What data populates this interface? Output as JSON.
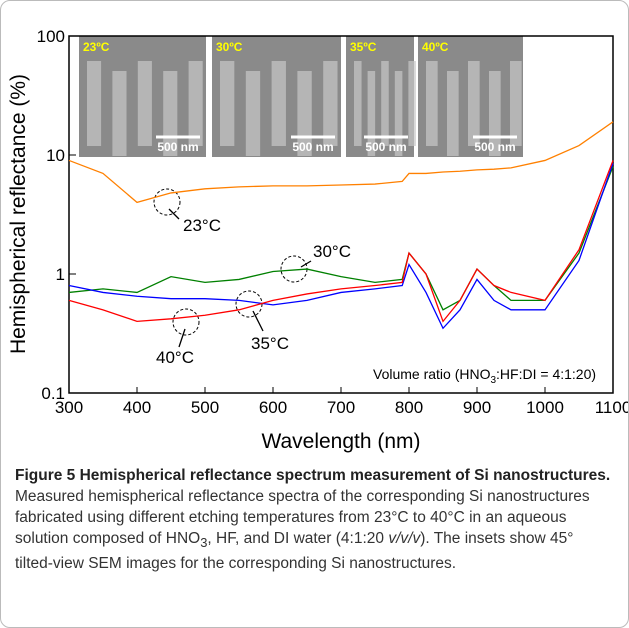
{
  "chart_data": {
    "type": "line",
    "y_label": "Hemispherical reflectance (%)",
    "x_label": "Wavelength (nm)",
    "y_scale": "log",
    "x": [
      300,
      350,
      400,
      450,
      500,
      550,
      600,
      650,
      700,
      750,
      790,
      800,
      825,
      850,
      875,
      900,
      925,
      950,
      1000,
      1050,
      1100
    ],
    "series": [
      {
        "name": "23°C",
        "color": "#ff8000",
        "values": [
          9,
          7,
          4,
          4.8,
          5.2,
          5.4,
          5.5,
          5.5,
          5.6,
          5.7,
          6,
          7,
          7,
          7.2,
          7.3,
          7.5,
          7.6,
          7.8,
          9,
          12,
          19
        ]
      },
      {
        "name": "30°C",
        "color": "#008000",
        "values": [
          0.7,
          0.75,
          0.7,
          0.95,
          0.85,
          0.9,
          1.05,
          1.1,
          0.95,
          0.85,
          0.9,
          1.5,
          1,
          0.5,
          0.6,
          1.1,
          0.8,
          0.6,
          0.6,
          1.5,
          8
        ]
      },
      {
        "name": "35°C",
        "color": "#0000ff",
        "values": [
          0.8,
          0.7,
          0.65,
          0.62,
          0.62,
          0.6,
          0.55,
          0.6,
          0.7,
          0.75,
          0.8,
          1.2,
          0.7,
          0.35,
          0.5,
          0.9,
          0.6,
          0.5,
          0.5,
          1.3,
          8.5
        ]
      },
      {
        "name": "40°C",
        "color": "#ff0000",
        "values": [
          0.6,
          0.5,
          0.4,
          0.42,
          0.45,
          0.5,
          0.6,
          0.68,
          0.75,
          0.8,
          0.85,
          1.5,
          1,
          0.4,
          0.6,
          1.1,
          0.8,
          0.7,
          0.6,
          1.6,
          9
        ]
      }
    ],
    "xlim": [
      300,
      1100
    ],
    "xticks": [
      300,
      400,
      500,
      600,
      700,
      800,
      900,
      1000,
      1100
    ],
    "ylim": [
      0.1,
      100
    ],
    "yticks": [
      0.1,
      1,
      10,
      100
    ],
    "annotation": [
      "Volume ratio (HNO",
      "3",
      ":HF:DI = 4:1:20)"
    ],
    "insets": [
      {
        "label": "23ºC",
        "scale": "500 nm"
      },
      {
        "label": "30ºC",
        "scale": "500 nm"
      },
      {
        "label": "35ºC",
        "scale": "500 nm"
      },
      {
        "label": "40ºC",
        "scale": "500 nm"
      }
    ]
  },
  "caption": {
    "title": "Figure 5 Hemispherical reflectance spectrum measurement of Si nanostructures.",
    "body": [
      " Measured hemispherical reflectance spectra of the corresponding Si nanostructures fabricated using different etching temperatures from 23°C to 40°C in an aqueous solution composed of HNO",
      "3",
      ", HF, and DI water (4:1:20 ",
      "v/v/v",
      "). The insets show 45° tilted-view SEM images for the corresponding Si nanostructures."
    ]
  }
}
